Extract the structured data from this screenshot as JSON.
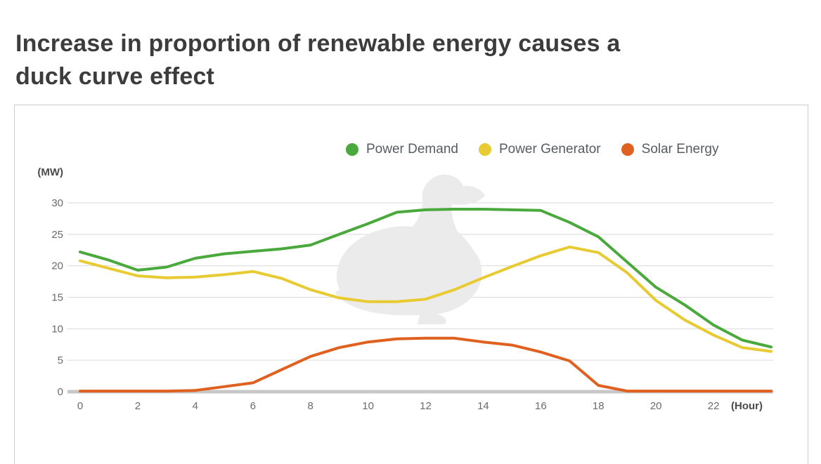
{
  "page": {
    "title": "Increase in proportion of renewable energy causes a duck curve effect"
  },
  "chart_data": {
    "type": "line",
    "title": "Increase in proportion of renewable energy causes a duck curve effect",
    "xlabel": "(Hour)",
    "ylabel": "(MW)",
    "xlim": [
      0,
      24
    ],
    "ylim": [
      0,
      30
    ],
    "x_tick_labels": [
      0,
      2,
      4,
      6,
      8,
      10,
      12,
      14,
      16,
      18,
      20,
      22
    ],
    "y_ticks": [
      0,
      5,
      10,
      15,
      20,
      25,
      30
    ],
    "grid": true,
    "legend_position": "top",
    "x": [
      0,
      1,
      2,
      3,
      4,
      5,
      6,
      7,
      8,
      9,
      10,
      11,
      12,
      13,
      14,
      15,
      16,
      17,
      18,
      19,
      20,
      21,
      22,
      23,
      24
    ],
    "series": [
      {
        "name": "Power Demand",
        "color": "#4aa93c",
        "values": [
          22.2,
          20.9,
          19.3,
          19.8,
          21.2,
          21.9,
          22.3,
          22.7,
          23.3,
          25.0,
          26.7,
          28.5,
          28.9,
          29.0,
          29.0,
          28.9,
          28.8,
          26.9,
          24.6,
          20.6,
          16.6,
          13.8,
          10.6,
          8.2,
          7.1
        ]
      },
      {
        "name": "Power Generator",
        "color": "#e8cb33",
        "values": [
          20.8,
          19.6,
          18.4,
          18.1,
          18.2,
          18.6,
          19.1,
          18.0,
          16.2,
          14.9,
          14.3,
          14.3,
          14.7,
          16.2,
          18.1,
          19.9,
          21.6,
          23.0,
          22.1,
          18.9,
          14.5,
          11.4,
          9.0,
          7.0,
          6.4
        ]
      },
      {
        "name": "Solar Energy",
        "color": "#e0611f",
        "values": [
          0.1,
          0.1,
          0.1,
          0.1,
          0.2,
          0.8,
          1.4,
          3.5,
          5.6,
          7.0,
          7.9,
          8.4,
          8.5,
          8.5,
          7.9,
          7.4,
          6.3,
          4.9,
          1.0,
          0.1,
          0.1,
          0.1,
          0.1,
          0.1,
          0.1
        ]
      }
    ],
    "colors": {
      "gridline": "#d9d9d9",
      "zero_axis": "#c7c7c7",
      "tick_text": "#6b6b6b",
      "watermark": "#ebebeb"
    }
  }
}
